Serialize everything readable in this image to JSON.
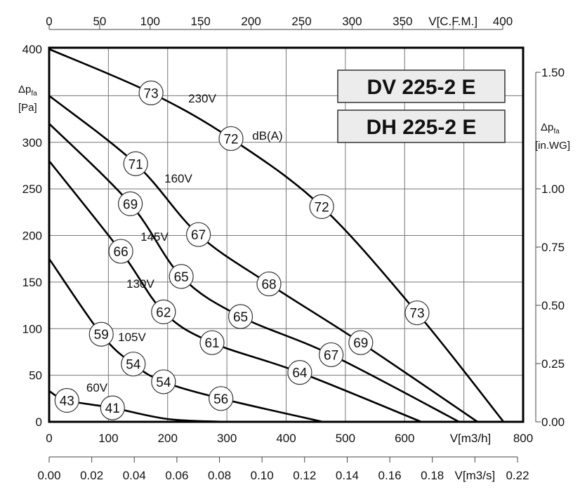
{
  "chart_data": {
    "type": "line",
    "title": "",
    "model_labels": [
      "DV 225-2 E",
      "DH 225-2 E"
    ],
    "xlabel": "V[m3/h]",
    "xlim": [
      0,
      800
    ],
    "xticks": [
      0,
      100,
      200,
      300,
      400,
      500,
      600,
      800
    ],
    "ylabel": "Δpfa [Pa]",
    "ylim": [
      0,
      400
    ],
    "yticks": [
      0,
      50,
      100,
      150,
      200,
      250,
      300,
      400
    ],
    "top_axis": {
      "label": "V[C.F.M.]",
      "ticks": [
        0,
        50,
        100,
        150,
        200,
        250,
        300,
        350,
        400
      ]
    },
    "bottom_axis2": {
      "label": "V[m3/s]",
      "ticks": [
        "0.00",
        "0.02",
        "0.04",
        "0.06",
        "0.08",
        "0.10",
        "0.12",
        "0.14",
        "0.16",
        "0.18",
        "0.22"
      ]
    },
    "right_axis": {
      "label": "Δpfa [in.WG]",
      "ticks": [
        "0.00",
        "0.25",
        "0.50",
        "0.75",
        "1.00",
        "1.50"
      ]
    },
    "unit_note": "dB(A)",
    "grid": true,
    "series": [
      {
        "name": "230V",
        "points": [
          [
            0,
            400
          ],
          [
            172,
            353
          ],
          [
            307,
            304
          ],
          [
            460,
            231
          ],
          [
            621,
            117
          ],
          [
            767,
            0
          ]
        ],
        "sound_labels": [
          {
            "x": 172,
            "y": 353,
            "v": "73"
          },
          {
            "x": 307,
            "y": 304,
            "v": "72"
          },
          {
            "x": 460,
            "y": 231,
            "v": "72"
          },
          {
            "x": 621,
            "y": 117,
            "v": "73"
          }
        ]
      },
      {
        "name": "160V",
        "points": [
          [
            0,
            350
          ],
          [
            146,
            277
          ],
          [
            252,
            201
          ],
          [
            371,
            148
          ],
          [
            526,
            85
          ],
          [
            723,
            0
          ]
        ],
        "sound_labels": [
          {
            "x": 146,
            "y": 277,
            "v": "71"
          },
          {
            "x": 252,
            "y": 201,
            "v": "67"
          },
          {
            "x": 371,
            "y": 148,
            "v": "68"
          },
          {
            "x": 526,
            "y": 85,
            "v": "69"
          }
        ]
      },
      {
        "name": "145V",
        "points": [
          [
            0,
            320
          ],
          [
            137,
            234
          ],
          [
            223,
            156
          ],
          [
            323,
            113
          ],
          [
            476,
            72
          ],
          [
            692,
            0
          ]
        ],
        "sound_labels": [
          {
            "x": 137,
            "y": 234,
            "v": "69"
          },
          {
            "x": 223,
            "y": 156,
            "v": "65"
          },
          {
            "x": 323,
            "y": 113,
            "v": "65"
          },
          {
            "x": 476,
            "y": 72,
            "v": "67"
          }
        ]
      },
      {
        "name": "130V",
        "points": [
          [
            0,
            280
          ],
          [
            121,
            183
          ],
          [
            193,
            118
          ],
          [
            275,
            85
          ],
          [
            423,
            53
          ],
          [
            628,
            0
          ]
        ],
        "sound_labels": [
          {
            "x": 121,
            "y": 183,
            "v": "66"
          },
          {
            "x": 193,
            "y": 118,
            "v": "62"
          },
          {
            "x": 275,
            "y": 85,
            "v": "61"
          },
          {
            "x": 423,
            "y": 53,
            "v": "64"
          }
        ]
      },
      {
        "name": "105V",
        "points": [
          [
            0,
            175
          ],
          [
            88,
            94
          ],
          [
            142,
            62
          ],
          [
            193,
            43
          ],
          [
            290,
            25
          ],
          [
            462,
            0
          ]
        ],
        "sound_labels": [
          {
            "x": 88,
            "y": 94,
            "v": "59"
          },
          {
            "x": 142,
            "y": 62,
            "v": "54"
          },
          {
            "x": 193,
            "y": 43,
            "v": "54"
          },
          {
            "x": 290,
            "y": 25,
            "v": "56"
          }
        ]
      },
      {
        "name": "60V",
        "points": [
          [
            0,
            33
          ],
          [
            30,
            23
          ],
          [
            107,
            15
          ],
          [
            200,
            3
          ],
          [
            300,
            0
          ]
        ],
        "sound_labels": [
          {
            "x": 30,
            "y": 23,
            "v": "43"
          },
          {
            "x": 107,
            "y": 15,
            "v": "41"
          }
        ]
      }
    ]
  }
}
